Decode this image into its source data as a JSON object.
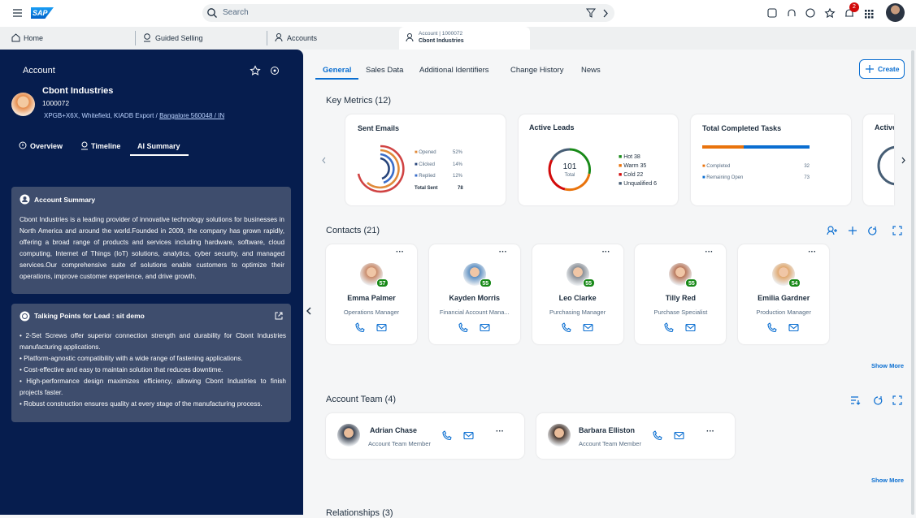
{
  "shell": {
    "logo": "SAP",
    "search_placeholder": "Search",
    "notification_count": "2"
  },
  "tabs": {
    "home": "Home",
    "guided": "Guided Selling",
    "accounts": "Accounts",
    "active_top": "Account | 1000072",
    "active_sub": "Cbont Industries"
  },
  "sidebar": {
    "heading": "Account",
    "name": "Cbont Industries",
    "id": "1000072",
    "address_main": "XPGB+X6X, Whitefield, KIADB Export /",
    "address_link": "Bangalore 560048 / IN",
    "tabs": [
      "Overview",
      "Timeline",
      "AI Summary"
    ],
    "summary": {
      "title": "Account Summary",
      "text": "Cbont Industries is a leading provider of innovative technology solutions for businesses in North America and around the world.Founded in 2009, the company has grown rapidly, offering a broad range of products and services including hardware, software, cloud computing, Internet of Things (IoT) solutions, analytics, cyber security, and managed services.Our comprehensive suite of solutions enable customers to optimize their operations, improve customer experience, and drive growth."
    },
    "talking": {
      "title": "Talking Points for Lead : sit demo",
      "points": [
        "2-Set Screws offer superior connection strength and durability for Cbont Industries manufacturing applications.",
        "Platform-agnostic compatibility with a wide range of fastening applications.",
        "Cost-effective and easy to maintain solution that reduces downtime.",
        "High-performance design maximizes efficiency, allowing Cbont Industries to finish projects faster.",
        "Robust construction ensures quality at every stage of the manufacturing process."
      ]
    }
  },
  "main": {
    "tabs": [
      "General",
      "Sales Data",
      "Additional Identifiers",
      "Change History",
      "News"
    ],
    "create": "Create",
    "key_metrics": {
      "title": "Key Metrics (12)",
      "sent_emails": {
        "title": "Sent Emails",
        "rows": [
          [
            "Opened",
            "52%"
          ],
          [
            "Clicked",
            "14%"
          ],
          [
            "Replied",
            "12%"
          ]
        ],
        "total_label": "Total Sent",
        "total": "78"
      },
      "active_leads": {
        "title": "Active Leads",
        "center_value": "101",
        "center_label": "Total",
        "rows": [
          "Hot 38",
          "Warm 35",
          "Cold 22",
          "Unqualified 6"
        ]
      },
      "tasks": {
        "title": "Total Completed Tasks",
        "rows": [
          [
            "Completed",
            "32"
          ],
          [
            "Remaining Open",
            "73"
          ]
        ]
      },
      "partial": "Active"
    },
    "contacts": {
      "title": "Contacts (21)",
      "show_more": "Show More",
      "items": [
        {
          "name": "Emma Palmer",
          "role": "Operations Manager",
          "score": "57"
        },
        {
          "name": "Kayden Morris",
          "role": "Financial Account Mana...",
          "score": "55"
        },
        {
          "name": "Leo Clarke",
          "role": "Purchasing Manager",
          "score": "55"
        },
        {
          "name": "Tilly Red",
          "role": "Purchase Specialist",
          "score": "55"
        },
        {
          "name": "Emilia Gardner",
          "role": "Production Manager",
          "score": "54"
        }
      ]
    },
    "team": {
      "title": "Account Team (4)",
      "show_more": "Show More",
      "items": [
        {
          "name": "Adrian Chase",
          "role": "Account Team Member"
        },
        {
          "name": "Barbara Elliston",
          "role": "Account Team Member"
        }
      ]
    },
    "relationships": {
      "title": "Relationships (3)"
    }
  }
}
